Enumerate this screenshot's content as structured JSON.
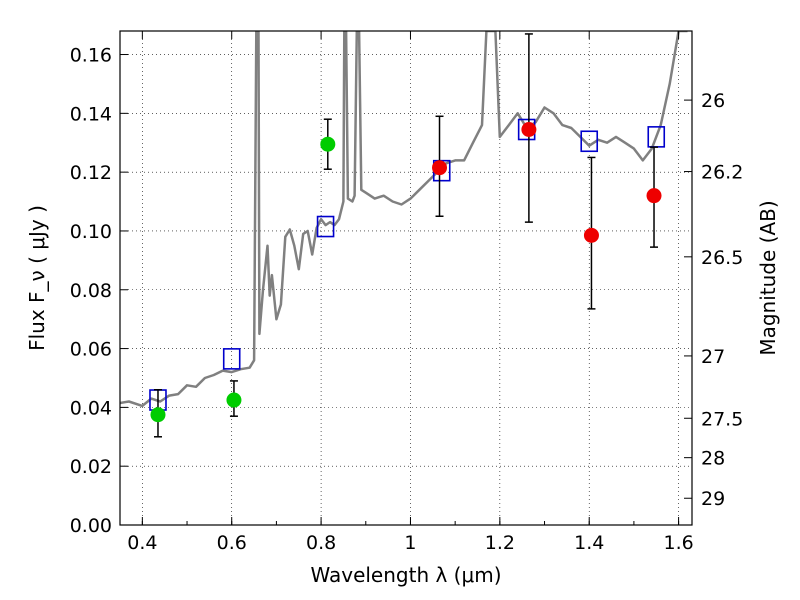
{
  "chart_data": {
    "type": "scatter",
    "xlabel": "Wavelength  λ (μm)",
    "ylabel": "Flux  F_ν  ( μJy )",
    "y2label": "Magnitude (AB)",
    "xlim": [
      0.35,
      1.63
    ],
    "ylim": [
      0.0,
      0.168
    ],
    "grid": true,
    "x_ticks": [
      0.4,
      0.6,
      0.8,
      1.0,
      1.2,
      1.4,
      1.6
    ],
    "x_tick_labels": [
      "0.4",
      "0.6",
      "0.8",
      "1",
      "1.2",
      "1.4",
      "1.6"
    ],
    "y_ticks": [
      0.0,
      0.02,
      0.04,
      0.06,
      0.08,
      0.1,
      0.12,
      0.14,
      0.16
    ],
    "y_tick_labels": [
      "0.00",
      "0.02",
      "0.04",
      "0.06",
      "0.08",
      "0.10",
      "0.12",
      "0.14",
      "0.16"
    ],
    "right_axis": {
      "label": "Magnitude (AB)",
      "ticks": [
        {
          "label": "26",
          "flux": 0.1445
        },
        {
          "label": "26.2",
          "flux": 0.1202
        },
        {
          "label": "26.5",
          "flux": 0.0912
        },
        {
          "label": "27",
          "flux": 0.0575
        },
        {
          "label": "27.5",
          "flux": 0.0363
        },
        {
          "label": "28",
          "flux": 0.0229
        },
        {
          "label": "29",
          "flux": 0.0091
        }
      ]
    },
    "series": [
      {
        "kind": "line",
        "color": "#808080",
        "points": [
          [
            0.35,
            0.0415
          ],
          [
            0.37,
            0.042
          ],
          [
            0.4,
            0.0405
          ],
          [
            0.42,
            0.043
          ],
          [
            0.44,
            0.042
          ],
          [
            0.46,
            0.044
          ],
          [
            0.48,
            0.0445
          ],
          [
            0.5,
            0.0475
          ],
          [
            0.52,
            0.047
          ],
          [
            0.54,
            0.05
          ],
          [
            0.56,
            0.051
          ],
          [
            0.58,
            0.0525
          ],
          [
            0.6,
            0.052
          ],
          [
            0.62,
            0.053
          ],
          [
            0.64,
            0.0535
          ],
          [
            0.65,
            0.056
          ],
          [
            0.655,
            0.168
          ],
          [
            0.66,
            0.168
          ],
          [
            0.662,
            0.065
          ],
          [
            0.67,
            0.08
          ],
          [
            0.68,
            0.095
          ],
          [
            0.685,
            0.078
          ],
          [
            0.69,
            0.085
          ],
          [
            0.7,
            0.07
          ],
          [
            0.71,
            0.075
          ],
          [
            0.72,
            0.098
          ],
          [
            0.73,
            0.1005
          ],
          [
            0.74,
            0.095
          ],
          [
            0.75,
            0.087
          ],
          [
            0.76,
            0.099
          ],
          [
            0.77,
            0.1
          ],
          [
            0.78,
            0.092
          ],
          [
            0.79,
            0.101
          ],
          [
            0.8,
            0.104
          ],
          [
            0.81,
            0.102
          ],
          [
            0.82,
            0.103
          ],
          [
            0.83,
            0.102
          ],
          [
            0.84,
            0.104
          ],
          [
            0.85,
            0.11
          ],
          [
            0.852,
            0.168
          ],
          [
            0.856,
            0.168
          ],
          [
            0.86,
            0.111
          ],
          [
            0.87,
            0.11
          ],
          [
            0.875,
            0.112
          ],
          [
            0.88,
            0.168
          ],
          [
            0.885,
            0.168
          ],
          [
            0.89,
            0.114
          ],
          [
            0.9,
            0.113
          ],
          [
            0.92,
            0.111
          ],
          [
            0.94,
            0.112
          ],
          [
            0.96,
            0.11
          ],
          [
            0.98,
            0.109
          ],
          [
            1.0,
            0.111
          ],
          [
            1.02,
            0.114
          ],
          [
            1.04,
            0.117
          ],
          [
            1.06,
            0.12
          ],
          [
            1.08,
            0.123
          ],
          [
            1.1,
            0.124
          ],
          [
            1.12,
            0.124
          ],
          [
            1.14,
            0.13
          ],
          [
            1.16,
            0.136
          ],
          [
            1.17,
            0.168
          ],
          [
            1.19,
            0.168
          ],
          [
            1.2,
            0.132
          ],
          [
            1.22,
            0.136
          ],
          [
            1.24,
            0.14
          ],
          [
            1.26,
            0.135
          ],
          [
            1.28,
            0.137
          ],
          [
            1.3,
            0.142
          ],
          [
            1.32,
            0.14
          ],
          [
            1.34,
            0.136
          ],
          [
            1.36,
            0.135
          ],
          [
            1.38,
            0.132
          ],
          [
            1.4,
            0.129
          ],
          [
            1.42,
            0.131
          ],
          [
            1.44,
            0.13
          ],
          [
            1.46,
            0.132
          ],
          [
            1.48,
            0.13
          ],
          [
            1.5,
            0.128
          ],
          [
            1.52,
            0.124
          ],
          [
            1.54,
            0.128
          ],
          [
            1.56,
            0.136
          ],
          [
            1.58,
            0.15
          ],
          [
            1.6,
            0.168
          ],
          [
            1.62,
            0.168
          ]
        ]
      },
      {
        "kind": "squares",
        "color": "#0000cc",
        "points": [
          [
            0.435,
            0.0425
          ],
          [
            0.6,
            0.0565
          ],
          [
            0.81,
            0.1015
          ],
          [
            1.07,
            0.1205
          ],
          [
            1.26,
            0.1345
          ],
          [
            1.4,
            0.1305
          ],
          [
            1.55,
            0.132
          ]
        ]
      },
      {
        "kind": "points",
        "color": "#00cc00",
        "points": [
          {
            "x": 0.435,
            "y": 0.0375,
            "err_lo": 0.0075,
            "err_hi": 0.0085
          },
          {
            "x": 0.605,
            "y": 0.0425,
            "err_lo": 0.0055,
            "err_hi": 0.0065
          },
          {
            "x": 0.815,
            "y": 0.1295,
            "err_lo": 0.0085,
            "err_hi": 0.0085
          }
        ]
      },
      {
        "kind": "points",
        "color": "#ee0000",
        "points": [
          {
            "x": 1.065,
            "y": 0.1215,
            "err_lo": 0.0165,
            "err_hi": 0.0175
          },
          {
            "x": 1.265,
            "y": 0.1345,
            "err_lo": 0.0315,
            "err_hi": 0.0325
          },
          {
            "x": 1.405,
            "y": 0.0985,
            "err_lo": 0.025,
            "err_hi": 0.0265
          },
          {
            "x": 1.545,
            "y": 0.112,
            "err_lo": 0.0175,
            "err_hi": 0.0165
          }
        ]
      }
    ]
  }
}
